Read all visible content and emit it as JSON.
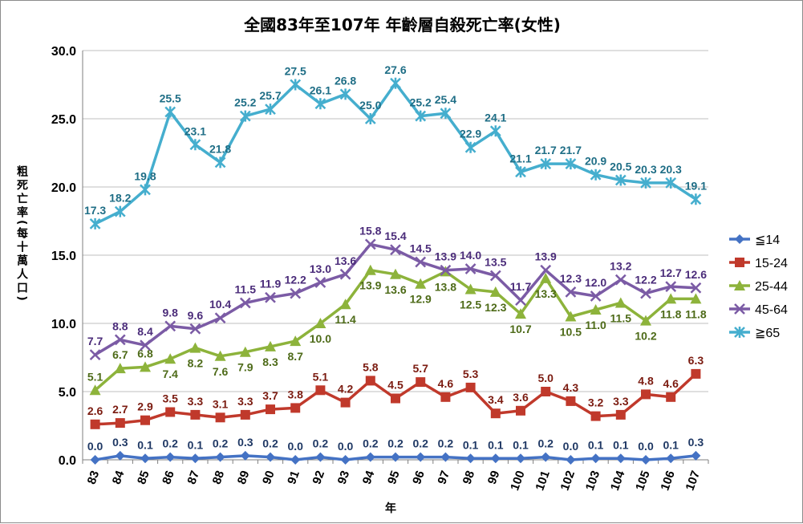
{
  "chart_data": {
    "type": "line",
    "title": "全國83年至107年 年齡層自殺死亡率(女性)",
    "xlabel": "年",
    "ylabel": "粗死亡率(每十萬人口)",
    "ylim": [
      0,
      30
    ],
    "yticks": [
      "0.0",
      "5.0",
      "10.0",
      "15.0",
      "20.0",
      "25.0",
      "30.0"
    ],
    "grid": true,
    "legend_position": "right",
    "categories": [
      "83",
      "84",
      "85",
      "86",
      "87",
      "88",
      "89",
      "90",
      "91",
      "92",
      "93",
      "94",
      "95",
      "96",
      "97",
      "98",
      "99",
      "100",
      "101",
      "102",
      "103",
      "104",
      "105",
      "106",
      "107"
    ],
    "series": [
      {
        "name": "≦14",
        "color": "#4472C4",
        "label_color": "#1F3864",
        "marker": "diamond",
        "values": [
          0.0,
          0.3,
          0.1,
          0.2,
          0.1,
          0.2,
          0.3,
          0.2,
          0.0,
          0.2,
          0.0,
          0.2,
          0.2,
          0.2,
          0.2,
          0.1,
          0.1,
          0.1,
          0.2,
          0.0,
          0.1,
          0.1,
          0.0,
          0.1,
          0.3
        ],
        "labels": [
          "0.0",
          "0.3",
          "0.1",
          "0.2",
          "0.1",
          "0.2",
          "0.3",
          "0.2",
          "0.0",
          "0.2",
          "0.0",
          "0.2",
          "0.2",
          "0.2",
          "0.2",
          "0.1",
          "0.1",
          "0.1",
          "0.2",
          "0.0",
          "0.1",
          "0.1",
          "0.0",
          "0.1",
          "0.3"
        ]
      },
      {
        "name": "15-24",
        "color": "#C0392B",
        "label_color": "#7B1B10",
        "marker": "square",
        "values": [
          2.6,
          2.7,
          2.9,
          3.5,
          3.3,
          3.1,
          3.3,
          3.7,
          3.8,
          5.1,
          4.2,
          5.8,
          4.5,
          5.7,
          4.6,
          5.3,
          3.4,
          3.6,
          5.0,
          4.3,
          3.2,
          3.3,
          4.8,
          4.6,
          6.3
        ],
        "labels": [
          "2.6",
          "2.7",
          "2.9",
          "3.5",
          "3.3",
          "3.1",
          "3.3",
          "3.7",
          "3.8",
          "5.1",
          "4.2",
          "5.8",
          "4.5",
          "5.7",
          "4.6",
          "5.3",
          "3.4",
          "3.6",
          "5.0",
          "4.3",
          "3.2",
          "3.3",
          "4.8",
          "4.6",
          "6.3"
        ]
      },
      {
        "name": "25-44",
        "color": "#8DB33B",
        "label_color": "#4E6B19",
        "marker": "triangle",
        "values": [
          5.1,
          6.7,
          6.8,
          7.4,
          8.2,
          7.6,
          7.9,
          8.3,
          8.7,
          10.0,
          11.4,
          13.9,
          13.6,
          12.9,
          13.8,
          12.5,
          12.3,
          10.7,
          13.3,
          10.5,
          11.0,
          11.5,
          10.2,
          11.8,
          11.8
        ],
        "labels": [
          "5.1",
          "6.7",
          "6.8",
          "7.4",
          "8.2",
          "7.6",
          "7.9",
          "8.3",
          "8.7",
          "10.0",
          "11.4",
          "13.9",
          "13.6",
          "12.9",
          "13.8",
          "12.5",
          "12.3",
          "10.7",
          "13.3",
          "10.5",
          "11.0",
          "11.5",
          "10.2",
          "11.8",
          "11.8"
        ]
      },
      {
        "name": "45-64",
        "color": "#7B5BA5",
        "label_color": "#4B2C7A",
        "marker": "x",
        "values": [
          7.7,
          8.8,
          8.4,
          9.8,
          9.6,
          10.4,
          11.5,
          11.9,
          12.2,
          13.0,
          13.6,
          15.8,
          15.4,
          14.5,
          13.9,
          14.0,
          13.5,
          11.7,
          13.9,
          12.3,
          12.0,
          13.2,
          12.2,
          12.7,
          12.6
        ],
        "labels": [
          "7.7",
          "8.8",
          "8.4",
          "9.8",
          "9.6",
          "10.4",
          "11.5",
          "11.9",
          "12.2",
          "13.0",
          "13.6",
          "15.8",
          "15.4",
          "14.5",
          "13.9",
          "14.0",
          "13.5",
          "11.7",
          "13.9",
          "12.3",
          "12.0",
          "13.2",
          "12.2",
          "12.7",
          "12.6"
        ]
      },
      {
        "name": "≧65",
        "color": "#45AECE",
        "label_color": "#1F6E86",
        "marker": "star",
        "values": [
          17.3,
          18.2,
          19.8,
          25.5,
          23.1,
          21.8,
          25.2,
          25.7,
          27.5,
          26.1,
          26.8,
          25.0,
          27.6,
          25.2,
          25.4,
          22.9,
          24.1,
          21.1,
          21.7,
          21.7,
          20.9,
          20.5,
          20.3,
          20.3,
          19.1
        ],
        "labels": [
          "17.3",
          "18.2",
          "19.8",
          "25.5",
          "23.1",
          "21.8",
          "25.2",
          "25.7",
          "27.5",
          "26.1",
          "26.8",
          "25.0",
          "27.6",
          "25.2",
          "25.4",
          "22.9",
          "24.1",
          "21.1",
          "21.7",
          "21.7",
          "20.9",
          "20.5",
          "20.3",
          "20.3",
          "19.1"
        ]
      }
    ]
  }
}
